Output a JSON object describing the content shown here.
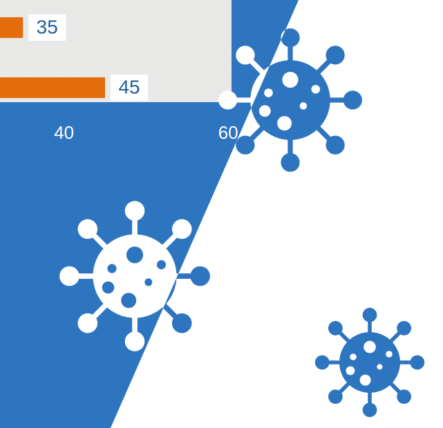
{
  "chart_data": {
    "type": "bar",
    "horizontal": true,
    "values": [
      35,
      45
    ],
    "color": "#e46c0a",
    "xlim": [
      32.2,
      60.4
    ],
    "xticks": [
      40,
      60
    ]
  }
}
